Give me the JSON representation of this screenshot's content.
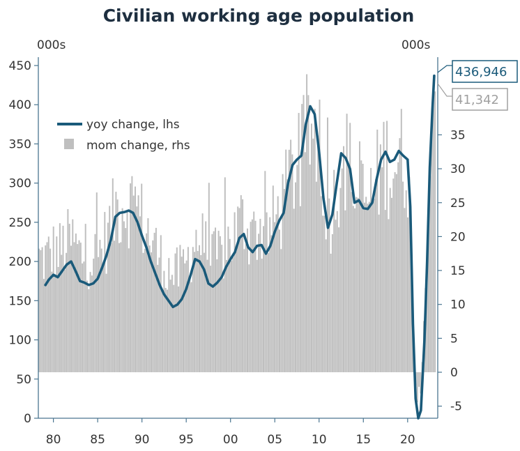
{
  "chart_data": {
    "type": "bar+line",
    "title": "Civilian working age population",
    "left_unit": "000s",
    "right_unit": "000s",
    "x_ticks": [
      "80",
      "85",
      "90",
      "95",
      "00",
      "05",
      "10",
      "15",
      "20"
    ],
    "x_range": [
      1978.3,
      2023.4
    ],
    "left_axis": {
      "min": 0,
      "max": 450,
      "ticks": [
        0,
        50,
        100,
        150,
        200,
        250,
        300,
        350,
        400,
        450
      ]
    },
    "right_axis": {
      "min": -5,
      "max": 40,
      "ticks": [
        -5,
        0,
        5,
        10,
        15,
        20,
        25,
        30,
        35
      ]
    },
    "legend": {
      "position": "top-left"
    },
    "series": [
      {
        "name": "yoy change, lhs",
        "type": "line",
        "axis": "left",
        "color": "#1a5a7a",
        "points": [
          [
            1979.1,
            170
          ],
          [
            1979.5,
            177
          ],
          [
            1980.0,
            183
          ],
          [
            1980.5,
            180
          ],
          [
            1981.0,
            188
          ],
          [
            1981.5,
            196
          ],
          [
            1982.0,
            200
          ],
          [
            1982.5,
            188
          ],
          [
            1983.0,
            175
          ],
          [
            1983.5,
            173
          ],
          [
            1984.0,
            170
          ],
          [
            1984.5,
            172
          ],
          [
            1985.0,
            178
          ],
          [
            1985.5,
            192
          ],
          [
            1986.0,
            208
          ],
          [
            1986.5,
            228
          ],
          [
            1987.0,
            257
          ],
          [
            1987.5,
            262
          ],
          [
            1988.0,
            263
          ],
          [
            1988.5,
            265
          ],
          [
            1989.0,
            262
          ],
          [
            1989.5,
            250
          ],
          [
            1990.0,
            233
          ],
          [
            1990.5,
            218
          ],
          [
            1991.0,
            200
          ],
          [
            1991.5,
            185
          ],
          [
            1992.0,
            170
          ],
          [
            1992.5,
            158
          ],
          [
            1993.0,
            150
          ],
          [
            1993.5,
            142
          ],
          [
            1994.0,
            145
          ],
          [
            1994.5,
            152
          ],
          [
            1995.0,
            165
          ],
          [
            1995.5,
            183
          ],
          [
            1996.0,
            203
          ],
          [
            1996.5,
            200
          ],
          [
            1997.0,
            190
          ],
          [
            1997.5,
            172
          ],
          [
            1998.0,
            168
          ],
          [
            1998.5,
            173
          ],
          [
            1999.0,
            180
          ],
          [
            1999.5,
            193
          ],
          [
            2000.0,
            203
          ],
          [
            2000.5,
            212
          ],
          [
            2001.0,
            230
          ],
          [
            2001.5,
            235
          ],
          [
            2002.0,
            218
          ],
          [
            2002.5,
            212
          ],
          [
            2003.0,
            220
          ],
          [
            2003.5,
            221
          ],
          [
            2004.0,
            210
          ],
          [
            2004.5,
            220
          ],
          [
            2005.0,
            238
          ],
          [
            2005.5,
            252
          ],
          [
            2006.0,
            262
          ],
          [
            2006.5,
            300
          ],
          [
            2007.0,
            323
          ],
          [
            2007.5,
            330
          ],
          [
            2008.0,
            335
          ],
          [
            2008.5,
            375
          ],
          [
            2009.0,
            398
          ],
          [
            2009.5,
            388
          ],
          [
            2010.0,
            340
          ],
          [
            2010.5,
            280
          ],
          [
            2011.0,
            243
          ],
          [
            2011.5,
            260
          ],
          [
            2012.0,
            300
          ],
          [
            2012.5,
            338
          ],
          [
            2013.0,
            332
          ],
          [
            2013.5,
            318
          ],
          [
            2014.0,
            275
          ],
          [
            2014.5,
            278
          ],
          [
            2015.0,
            268
          ],
          [
            2015.5,
            267
          ],
          [
            2016.0,
            275
          ],
          [
            2016.5,
            305
          ],
          [
            2017.0,
            330
          ],
          [
            2017.5,
            340
          ],
          [
            2018.0,
            327
          ],
          [
            2018.5,
            330
          ],
          [
            2019.0,
            341
          ],
          [
            2019.5,
            335
          ],
          [
            2020.0,
            330
          ],
          [
            2020.3,
            270
          ],
          [
            2020.6,
            120
          ],
          [
            2020.9,
            25
          ],
          [
            2021.2,
            0
          ],
          [
            2021.5,
            10
          ],
          [
            2021.9,
            100
          ],
          [
            2022.2,
            200
          ],
          [
            2022.5,
            320
          ],
          [
            2022.8,
            395
          ],
          [
            2023.0,
            437
          ]
        ]
      },
      {
        "name": "mom change, rhs",
        "type": "bar",
        "axis": "right",
        "color": "#bfbfbf"
      }
    ],
    "callouts": [
      {
        "series": "yoy change, lhs",
        "text": "436,946",
        "color": "#1a5a7a"
      },
      {
        "series": "mom change, rhs",
        "text": "41,342",
        "color": "#a0a0a0"
      }
    ]
  }
}
